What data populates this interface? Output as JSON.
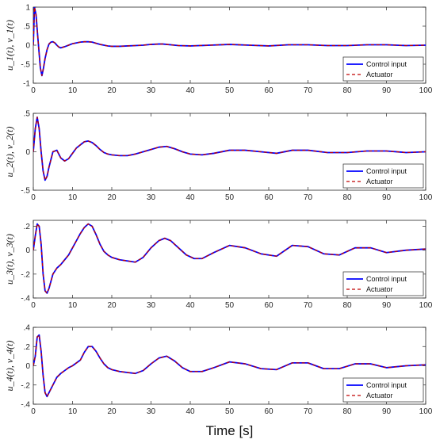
{
  "chart_data": [
    {
      "type": "line",
      "ylabel": "u_1(t), v_1(t)",
      "xlim": [
        0,
        100
      ],
      "ylim": [
        -1,
        1
      ],
      "yticks": [
        -1,
        -0.5,
        0,
        0.5,
        1
      ],
      "xticks": [
        0,
        10,
        20,
        30,
        40,
        50,
        60,
        70,
        80,
        90,
        100
      ],
      "legend_position": "bottom-right",
      "series": [
        {
          "name": "Control input",
          "color": "#0000ff",
          "dash": "solid",
          "x": [
            0,
            0.3,
            0.7,
            1,
            1.4,
            1.8,
            2.2,
            2.6,
            3,
            3.5,
            4,
            4.5,
            5,
            5.5,
            6,
            6.5,
            7,
            8,
            9,
            10,
            11,
            12,
            13,
            14,
            15,
            16,
            17,
            18,
            19,
            20,
            22,
            24,
            26,
            28,
            30,
            32,
            33,
            35,
            37,
            40,
            45,
            50,
            55,
            60,
            65,
            70,
            75,
            80,
            85,
            90,
            95,
            100
          ],
          "y": [
            0,
            1,
            0.8,
            0.4,
            -0.1,
            -0.6,
            -0.8,
            -0.6,
            -0.35,
            -0.12,
            0.03,
            0.08,
            0.09,
            0.06,
            0,
            -0.05,
            -0.07,
            -0.04,
            0,
            0.04,
            0.06,
            0.08,
            0.09,
            0.09,
            0.08,
            0.05,
            0.02,
            0,
            -0.02,
            -0.03,
            -0.03,
            -0.02,
            -0.01,
            0,
            0.02,
            0.03,
            0.03,
            0.01,
            -0.01,
            -0.02,
            0,
            0.02,
            0,
            -0.02,
            0.01,
            0.01,
            -0.01,
            -0.01,
            0.01,
            0.01,
            -0.01,
            0
          ]
        },
        {
          "name": "Actuator",
          "color": "#c00000",
          "dash": "dashed",
          "x": [
            0,
            0.3,
            0.7,
            1,
            1.4,
            1.8,
            2.2,
            2.6,
            3,
            3.5,
            4,
            4.5,
            5,
            5.5,
            6,
            6.5,
            7,
            8,
            9,
            10,
            11,
            12,
            13,
            14,
            15,
            16,
            17,
            18,
            19,
            20,
            22,
            24,
            26,
            28,
            30,
            32,
            33,
            35,
            37,
            40,
            45,
            50,
            55,
            60,
            65,
            70,
            75,
            80,
            85,
            90,
            95,
            100
          ],
          "y": [
            0,
            1,
            0.8,
            0.4,
            -0.1,
            -0.6,
            -0.8,
            -0.6,
            -0.35,
            -0.12,
            0.03,
            0.08,
            0.09,
            0.06,
            0,
            -0.05,
            -0.07,
            -0.04,
            0,
            0.04,
            0.06,
            0.08,
            0.09,
            0.09,
            0.08,
            0.05,
            0.02,
            0,
            -0.02,
            -0.03,
            -0.03,
            -0.02,
            -0.01,
            0,
            0.02,
            0.03,
            0.03,
            0.01,
            -0.01,
            -0.02,
            0,
            0.02,
            0,
            -0.02,
            0.01,
            0.01,
            -0.01,
            -0.01,
            0.01,
            0.01,
            -0.01,
            0
          ]
        }
      ]
    },
    {
      "type": "line",
      "ylabel": "u_2(t), v_2(t)",
      "xlim": [
        0,
        100
      ],
      "ylim": [
        -0.5,
        0.5
      ],
      "yticks": [
        -0.5,
        0,
        0.5
      ],
      "xticks": [
        0,
        10,
        20,
        30,
        40,
        50,
        60,
        70,
        80,
        90,
        100
      ],
      "legend_position": "bottom-right",
      "series": [
        {
          "name": "Control input",
          "color": "#0000ff",
          "dash": "solid",
          "x": [
            0,
            0.5,
            1,
            1.5,
            2,
            2.5,
            3,
            3.5,
            4,
            5,
            6,
            7,
            8,
            9,
            10,
            11,
            12,
            13,
            14,
            15,
            16,
            17,
            18,
            19,
            20,
            22,
            24,
            26,
            28,
            30,
            32,
            34,
            36,
            38,
            40,
            43,
            46,
            50,
            54,
            58,
            62,
            66,
            70,
            75,
            80,
            85,
            90,
            95,
            100
          ],
          "y": [
            0,
            0.3,
            0.45,
            0.3,
            0,
            -0.25,
            -0.37,
            -0.32,
            -0.2,
            0,
            0.02,
            -0.08,
            -0.12,
            -0.09,
            -0.02,
            0.05,
            0.09,
            0.13,
            0.14,
            0.12,
            0.08,
            0.03,
            -0.01,
            -0.03,
            -0.04,
            -0.05,
            -0.05,
            -0.03,
            0,
            0.03,
            0.06,
            0.07,
            0.04,
            0,
            -0.03,
            -0.04,
            -0.02,
            0.02,
            0.02,
            0,
            -0.02,
            0.02,
            0.02,
            -0.01,
            -0.01,
            0.01,
            0.01,
            -0.01,
            0
          ]
        },
        {
          "name": "Actuator",
          "color": "#c00000",
          "dash": "dashed",
          "x": [
            0,
            0.5,
            1,
            1.5,
            2,
            2.5,
            3,
            3.5,
            4,
            5,
            6,
            7,
            8,
            9,
            10,
            11,
            12,
            13,
            14,
            15,
            16,
            17,
            18,
            19,
            20,
            22,
            24,
            26,
            28,
            30,
            32,
            34,
            36,
            38,
            40,
            43,
            46,
            50,
            54,
            58,
            62,
            66,
            70,
            75,
            80,
            85,
            90,
            95,
            100
          ],
          "y": [
            0,
            0.3,
            0.45,
            0.3,
            0,
            -0.25,
            -0.37,
            -0.32,
            -0.2,
            0,
            0.02,
            -0.08,
            -0.12,
            -0.09,
            -0.02,
            0.05,
            0.09,
            0.13,
            0.14,
            0.12,
            0.08,
            0.03,
            -0.01,
            -0.03,
            -0.04,
            -0.05,
            -0.05,
            -0.03,
            0,
            0.03,
            0.06,
            0.07,
            0.04,
            0,
            -0.03,
            -0.04,
            -0.02,
            0.02,
            0.02,
            0,
            -0.02,
            0.02,
            0.02,
            -0.01,
            -0.01,
            0.01,
            0.01,
            -0.01,
            0
          ]
        }
      ]
    },
    {
      "type": "line",
      "ylabel": "u_3(t), v_3(t)",
      "xlim": [
        0,
        100
      ],
      "ylim": [
        -0.4,
        0.25
      ],
      "yticks": [
        -0.4,
        -0.2,
        0,
        0.2
      ],
      "xticks": [
        0,
        10,
        20,
        30,
        40,
        50,
        60,
        70,
        80,
        90,
        100
      ],
      "legend_position": "bottom-right",
      "series": [
        {
          "name": "Control input",
          "color": "#0000ff",
          "dash": "solid",
          "x": [
            0,
            0.5,
            1,
            1.5,
            2,
            2.5,
            3,
            3.5,
            4,
            5,
            6,
            7,
            8,
            9,
            10,
            11,
            12,
            13,
            14,
            15,
            16,
            17,
            18,
            19,
            20,
            21,
            22,
            24,
            26,
            28,
            30,
            32,
            33.5,
            35,
            37,
            39,
            41,
            43,
            46,
            50,
            54,
            58,
            62,
            66,
            70,
            74,
            78,
            82,
            86,
            90,
            95,
            100
          ],
          "y": [
            0,
            0.12,
            0.22,
            0.2,
            0.05,
            -0.2,
            -0.34,
            -0.36,
            -0.32,
            -0.2,
            -0.15,
            -0.12,
            -0.08,
            -0.04,
            0.02,
            0.08,
            0.14,
            0.19,
            0.22,
            0.2,
            0.13,
            0.05,
            -0.01,
            -0.04,
            -0.06,
            -0.07,
            -0.08,
            -0.09,
            -0.1,
            -0.06,
            0.02,
            0.08,
            0.1,
            0.08,
            0.02,
            -0.04,
            -0.07,
            -0.07,
            -0.02,
            0.04,
            0.02,
            -0.03,
            -0.05,
            0.04,
            0.03,
            -0.03,
            -0.04,
            0.02,
            0.02,
            -0.02,
            0,
            0.01
          ]
        },
        {
          "name": "Actuator",
          "color": "#c00000",
          "dash": "dashed",
          "x": [
            0,
            0.5,
            1,
            1.5,
            2,
            2.5,
            3,
            3.5,
            4,
            5,
            6,
            7,
            8,
            9,
            10,
            11,
            12,
            13,
            14,
            15,
            16,
            17,
            18,
            19,
            20,
            21,
            22,
            24,
            26,
            28,
            30,
            32,
            33.5,
            35,
            37,
            39,
            41,
            43,
            46,
            50,
            54,
            58,
            62,
            66,
            70,
            74,
            78,
            82,
            86,
            90,
            95,
            100
          ],
          "y": [
            0,
            0.12,
            0.22,
            0.2,
            0.05,
            -0.2,
            -0.34,
            -0.36,
            -0.32,
            -0.2,
            -0.15,
            -0.12,
            -0.08,
            -0.04,
            0.02,
            0.08,
            0.14,
            0.19,
            0.22,
            0.2,
            0.13,
            0.05,
            -0.01,
            -0.04,
            -0.06,
            -0.07,
            -0.08,
            -0.09,
            -0.1,
            -0.06,
            0.02,
            0.08,
            0.1,
            0.08,
            0.02,
            -0.04,
            -0.07,
            -0.07,
            -0.02,
            0.04,
            0.02,
            -0.03,
            -0.05,
            0.04,
            0.03,
            -0.03,
            -0.04,
            0.02,
            0.02,
            -0.02,
            0,
            0.01
          ]
        }
      ]
    },
    {
      "type": "line",
      "ylabel": "u_4(t), v_4(t)",
      "xlabel": "Time [s]",
      "xlim": [
        0,
        100
      ],
      "ylim": [
        -0.4,
        0.4
      ],
      "yticks": [
        -0.4,
        -0.2,
        0,
        0.2,
        0.4
      ],
      "xticks": [
        0,
        10,
        20,
        30,
        40,
        50,
        60,
        70,
        80,
        90,
        100
      ],
      "legend_position": "bottom-right",
      "series": [
        {
          "name": "Control input",
          "color": "#0000ff",
          "dash": "solid",
          "x": [
            0,
            0.5,
            1,
            1.5,
            2,
            2.5,
            3,
            3.5,
            4,
            5,
            6,
            7,
            8,
            9,
            10,
            11,
            12,
            13,
            14,
            15,
            16,
            17,
            18,
            19,
            20,
            22,
            24,
            26,
            28,
            30,
            32,
            34,
            36,
            38,
            40,
            43,
            46,
            50,
            54,
            58,
            62,
            66,
            70,
            74,
            78,
            82,
            86,
            90,
            95,
            100
          ],
          "y": [
            0,
            0.1,
            0.3,
            0.32,
            0.15,
            -0.1,
            -0.28,
            -0.32,
            -0.28,
            -0.2,
            -0.12,
            -0.08,
            -0.05,
            -0.02,
            0,
            0.03,
            0.06,
            0.14,
            0.2,
            0.2,
            0.15,
            0.08,
            0.02,
            -0.02,
            -0.04,
            -0.06,
            -0.07,
            -0.08,
            -0.05,
            0.02,
            0.08,
            0.1,
            0.05,
            -0.02,
            -0.06,
            -0.06,
            -0.02,
            0.04,
            0.02,
            -0.03,
            -0.04,
            0.03,
            0.03,
            -0.03,
            -0.03,
            0.02,
            0.02,
            -0.02,
            0,
            0.01
          ]
        },
        {
          "name": "Actuator",
          "color": "#c00000",
          "dash": "dashed",
          "x": [
            0,
            0.5,
            1,
            1.5,
            2,
            2.5,
            3,
            3.5,
            4,
            5,
            6,
            7,
            8,
            9,
            10,
            11,
            12,
            13,
            14,
            15,
            16,
            17,
            18,
            19,
            20,
            22,
            24,
            26,
            28,
            30,
            32,
            34,
            36,
            38,
            40,
            43,
            46,
            50,
            54,
            58,
            62,
            66,
            70,
            74,
            78,
            82,
            86,
            90,
            95,
            100
          ],
          "y": [
            0,
            0.1,
            0.3,
            0.32,
            0.15,
            -0.1,
            -0.28,
            -0.32,
            -0.28,
            -0.2,
            -0.12,
            -0.08,
            -0.05,
            -0.02,
            0,
            0.03,
            0.06,
            0.14,
            0.2,
            0.2,
            0.15,
            0.08,
            0.02,
            -0.02,
            -0.04,
            -0.06,
            -0.07,
            -0.08,
            -0.05,
            0.02,
            0.08,
            0.1,
            0.05,
            -0.02,
            -0.06,
            -0.06,
            -0.02,
            0.04,
            0.02,
            -0.03,
            -0.04,
            0.03,
            0.03,
            -0.03,
            -0.03,
            0.02,
            0.02,
            -0.02,
            0,
            0.01
          ]
        }
      ]
    }
  ]
}
